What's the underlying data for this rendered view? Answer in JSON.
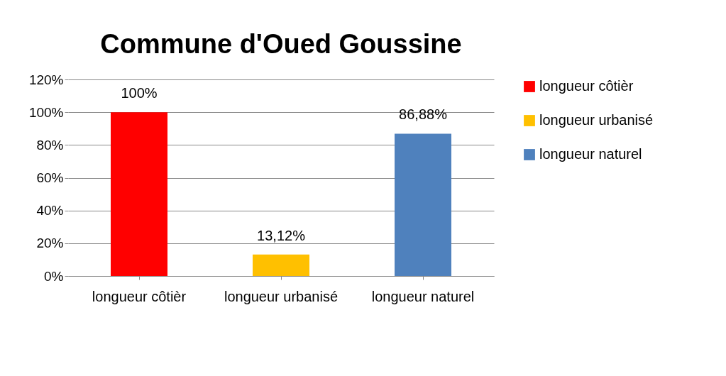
{
  "chart_data": {
    "type": "bar",
    "title": "Commune d'Oued Goussine",
    "categories": [
      "longueur côtièr",
      "longueur urbanisé",
      "longueur naturel"
    ],
    "series": [
      {
        "name": "longueur côtièr",
        "color": "#ff0000",
        "values": [
          100,
          null,
          null
        ],
        "value_labels": [
          "100%",
          null,
          null
        ]
      },
      {
        "name": "longueur urbanisé",
        "color": "#ffc000",
        "values": [
          null,
          13.12,
          null
        ],
        "value_labels": [
          null,
          "13,12%",
          null
        ]
      },
      {
        "name": "longueur naturel",
        "color": "#4f81bd",
        "values": [
          null,
          null,
          86.88
        ],
        "value_labels": [
          null,
          null,
          "86,88%"
        ]
      }
    ],
    "ylim": [
      0,
      120
    ],
    "yticks": [
      {
        "value": 0,
        "label": "0%"
      },
      {
        "value": 20,
        "label": "20%"
      },
      {
        "value": 40,
        "label": "40%"
      },
      {
        "value": 60,
        "label": "60%"
      },
      {
        "value": 80,
        "label": "80%"
      },
      {
        "value": 100,
        "label": "100%"
      },
      {
        "value": 120,
        "label": "120%"
      }
    ],
    "grid": "y",
    "legend": "right"
  }
}
